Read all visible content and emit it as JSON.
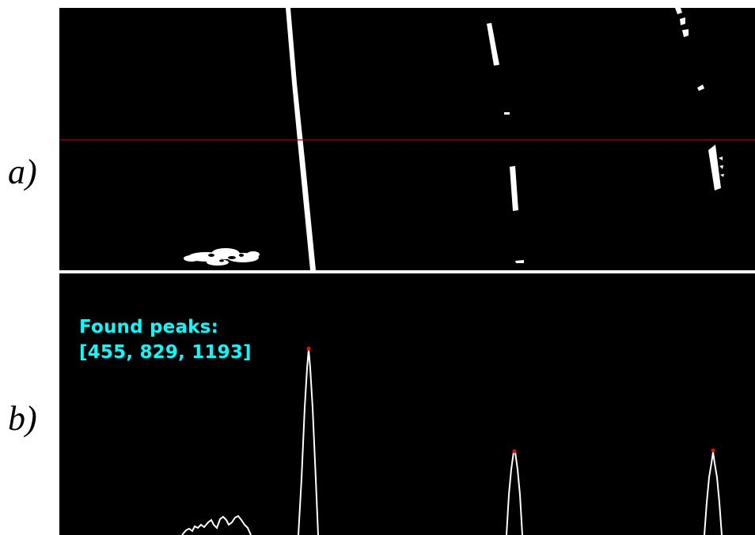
{
  "labels": {
    "panel_a": "a)",
    "panel_b": "b)"
  },
  "panel_b": {
    "found_peaks_title": "Found peaks:",
    "found_peaks_values": "[455, 829, 1193]"
  },
  "colors": {
    "background": "#000000",
    "lane_pixels": "#ffffff",
    "scan_line": "#b00000",
    "histogram": "#ffffff",
    "peak_marker": "#ff0000",
    "annotation_text": "#00ffff"
  }
}
